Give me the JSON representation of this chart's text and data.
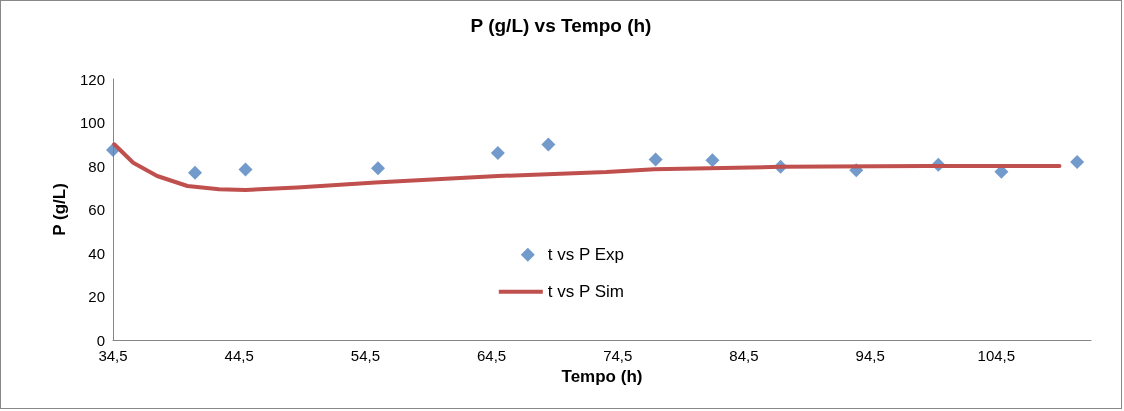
{
  "chart_data": {
    "type": "scatter",
    "title": "P (g/L) vs Tempo (h)",
    "xlabel": "Tempo (h)",
    "ylabel": "P (g/L)",
    "xlim": [
      34.5,
      112
    ],
    "xticks": [
      {
        "value": 34.5,
        "label": "34,5"
      },
      {
        "value": 44.5,
        "label": "44,5"
      },
      {
        "value": 54.5,
        "label": "54,5"
      },
      {
        "value": 64.5,
        "label": "64,5"
      },
      {
        "value": 74.5,
        "label": "74,5"
      },
      {
        "value": 84.5,
        "label": "84,5"
      },
      {
        "value": 94.5,
        "label": "94,5"
      },
      {
        "value": 104.5,
        "label": "104,5"
      }
    ],
    "ylim": [
      0,
      120
    ],
    "yticks": [
      0,
      20,
      40,
      60,
      80,
      100,
      120
    ],
    "grid": false,
    "legend": "center",
    "series": [
      {
        "name": "t vs P Exp",
        "marker": "diamond",
        "color": "#4f81bd",
        "x": [
          34.5,
          41,
          45,
          55.5,
          65,
          69,
          77.5,
          82,
          87.4,
          93.4,
          99.9,
          104.9,
          110.9
        ],
        "values": [
          87.4,
          76.9,
          78.4,
          79,
          86,
          89.9,
          83,
          82.7,
          79.7,
          78,
          80.6,
          77.3,
          81.8
        ]
      },
      {
        "name": "t vs P Sim",
        "type": "line",
        "marker": "none",
        "line_style": "solid",
        "color": "#c0504d",
        "x": [
          34.6,
          36.1,
          38,
          40.4,
          42.9,
          45,
          49.1,
          55.3,
          65,
          73.6,
          77.4,
          87.4,
          99,
          109.5
        ],
        "values": [
          90,
          81.5,
          75.4,
          70.8,
          69.3,
          69,
          70.1,
          72.4,
          75.4,
          77.2,
          78.5,
          79.6,
          80,
          80
        ]
      }
    ]
  }
}
